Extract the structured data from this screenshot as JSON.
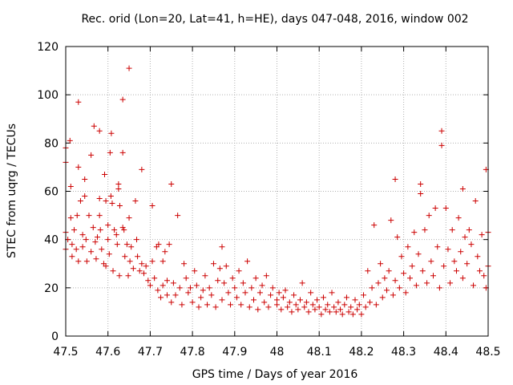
{
  "chart_data": {
    "type": "scatter",
    "title": "Rec. orid (Lon=20, Lat=41, h=HE), days 047-048, 2016, window 002",
    "xlabel": "GPS time / Days of year 2016",
    "ylabel": "STEC from uqrg / TECUs",
    "xlim": [
      47.5,
      48.5
    ],
    "ylim": [
      0,
      120
    ],
    "x_ticks": [
      47.5,
      47.6,
      47.7,
      47.8,
      47.9,
      48.0,
      48.1,
      48.2,
      48.3,
      48.4,
      48.5
    ],
    "x_tick_labels": [
      "47.5",
      "47.6",
      "47.7",
      "47.8",
      "47.9",
      "48",
      "48.1",
      "48.2",
      "48.3",
      "48.4",
      "48.5"
    ],
    "y_ticks": [
      0,
      20,
      40,
      60,
      80,
      100,
      120
    ],
    "y_tick_labels": [
      "0",
      "20",
      "40",
      "60",
      "80",
      "100",
      "120"
    ],
    "grid": true,
    "legend": "none",
    "marker": "plus",
    "color": "#cc0000",
    "series": [
      {
        "points": [
          [
            47.5,
            78
          ],
          [
            47.5,
            72
          ],
          [
            47.5,
            43
          ],
          [
            47.5,
            36
          ],
          [
            47.505,
            40
          ],
          [
            47.51,
            81
          ],
          [
            47.512,
            62
          ],
          [
            47.512,
            49
          ],
          [
            47.515,
            38
          ],
          [
            47.515,
            33
          ],
          [
            47.52,
            44
          ],
          [
            47.525,
            36
          ],
          [
            47.527,
            50
          ],
          [
            47.53,
            97
          ],
          [
            47.53,
            70
          ],
          [
            47.53,
            31
          ],
          [
            47.535,
            56
          ],
          [
            47.54,
            42
          ],
          [
            47.54,
            37
          ],
          [
            47.545,
            65
          ],
          [
            47.545,
            58
          ],
          [
            47.548,
            40
          ],
          [
            47.55,
            31
          ],
          [
            47.555,
            50
          ],
          [
            47.56,
            35
          ],
          [
            47.56,
            75
          ],
          [
            47.565,
            45
          ],
          [
            47.567,
            87
          ],
          [
            47.57,
            39
          ],
          [
            47.572,
            32
          ],
          [
            47.575,
            41
          ],
          [
            47.58,
            85
          ],
          [
            47.58,
            57
          ],
          [
            47.58,
            50
          ],
          [
            47.582,
            44
          ],
          [
            47.585,
            36
          ],
          [
            47.59,
            30
          ],
          [
            47.592,
            67
          ],
          [
            47.595,
            56
          ],
          [
            47.595,
            29
          ],
          [
            47.6,
            46
          ],
          [
            47.6,
            40
          ],
          [
            47.603,
            34
          ],
          [
            47.605,
            76
          ],
          [
            47.607,
            58
          ],
          [
            47.608,
            84
          ],
          [
            47.61,
            55
          ],
          [
            47.612,
            27
          ],
          [
            47.615,
            44
          ],
          [
            47.62,
            42
          ],
          [
            47.622,
            38
          ],
          [
            47.625,
            63
          ],
          [
            47.625,
            61
          ],
          [
            47.627,
            25
          ],
          [
            47.628,
            54
          ],
          [
            47.635,
            76
          ],
          [
            47.635,
            98
          ],
          [
            47.635,
            45
          ],
          [
            47.638,
            44
          ],
          [
            47.64,
            33
          ],
          [
            47.645,
            38
          ],
          [
            47.648,
            25
          ],
          [
            47.65,
            111
          ],
          [
            47.65,
            49
          ],
          [
            47.652,
            31
          ],
          [
            47.655,
            37
          ],
          [
            47.66,
            28
          ],
          [
            47.665,
            56
          ],
          [
            47.668,
            40
          ],
          [
            47.67,
            33
          ],
          [
            47.675,
            27
          ],
          [
            47.68,
            69
          ],
          [
            47.68,
            30
          ],
          [
            47.685,
            26
          ],
          [
            47.69,
            29
          ],
          [
            47.695,
            23
          ],
          [
            47.7,
            21
          ],
          [
            47.705,
            31
          ],
          [
            47.705,
            54
          ],
          [
            47.71,
            24
          ],
          [
            47.715,
            37
          ],
          [
            47.718,
            19
          ],
          [
            47.72,
            38
          ],
          [
            47.725,
            16
          ],
          [
            47.73,
            21
          ],
          [
            47.73,
            31
          ],
          [
            47.735,
            35
          ],
          [
            47.74,
            17
          ],
          [
            47.74,
            23
          ],
          [
            47.745,
            38
          ],
          [
            47.75,
            63
          ],
          [
            47.75,
            14
          ],
          [
            47.755,
            22
          ],
          [
            47.76,
            17
          ],
          [
            47.765,
            50
          ],
          [
            47.77,
            20
          ],
          [
            47.775,
            13
          ],
          [
            47.78,
            30
          ],
          [
            47.785,
            24
          ],
          [
            47.79,
            18
          ],
          [
            47.795,
            20
          ],
          [
            47.8,
            14
          ],
          [
            47.805,
            27
          ],
          [
            47.81,
            21
          ],
          [
            47.815,
            12
          ],
          [
            47.82,
            16
          ],
          [
            47.825,
            19
          ],
          [
            47.83,
            25
          ],
          [
            47.835,
            13
          ],
          [
            47.84,
            20
          ],
          [
            47.845,
            17
          ],
          [
            47.85,
            30
          ],
          [
            47.855,
            12
          ],
          [
            47.86,
            23
          ],
          [
            47.865,
            28
          ],
          [
            47.87,
            37
          ],
          [
            47.87,
            15
          ],
          [
            47.875,
            22
          ],
          [
            47.88,
            29
          ],
          [
            47.885,
            18
          ],
          [
            47.89,
            13
          ],
          [
            47.895,
            24
          ],
          [
            47.9,
            20
          ],
          [
            47.905,
            16
          ],
          [
            47.91,
            27
          ],
          [
            47.915,
            13
          ],
          [
            47.92,
            22
          ],
          [
            47.925,
            18
          ],
          [
            47.93,
            31
          ],
          [
            47.935,
            12
          ],
          [
            47.94,
            20
          ],
          [
            47.945,
            15
          ],
          [
            47.95,
            24
          ],
          [
            47.955,
            11
          ],
          [
            47.96,
            18
          ],
          [
            47.965,
            21
          ],
          [
            47.97,
            14
          ],
          [
            47.975,
            25
          ],
          [
            47.98,
            12
          ],
          [
            47.985,
            17
          ],
          [
            47.99,
            20
          ],
          [
            48.0,
            15
          ],
          [
            48.0,
            13
          ],
          [
            48.005,
            18
          ],
          [
            48.01,
            11
          ],
          [
            48.015,
            16
          ],
          [
            48.02,
            19
          ],
          [
            48.025,
            12
          ],
          [
            48.03,
            14
          ],
          [
            48.035,
            10
          ],
          [
            48.04,
            17
          ],
          [
            48.045,
            13
          ],
          [
            48.05,
            11
          ],
          [
            48.055,
            15
          ],
          [
            48.06,
            22
          ],
          [
            48.065,
            12
          ],
          [
            48.07,
            14
          ],
          [
            48.075,
            10
          ],
          [
            48.08,
            18
          ],
          [
            48.085,
            13
          ],
          [
            48.09,
            11
          ],
          [
            48.095,
            15
          ],
          [
            48.1,
            12
          ],
          [
            48.105,
            9
          ],
          [
            48.11,
            16
          ],
          [
            48.115,
            11
          ],
          [
            48.12,
            13
          ],
          [
            48.125,
            10
          ],
          [
            48.13,
            18
          ],
          [
            48.135,
            12
          ],
          [
            48.14,
            10
          ],
          [
            48.145,
            14
          ],
          [
            48.15,
            11
          ],
          [
            48.155,
            9
          ],
          [
            48.16,
            13
          ],
          [
            48.165,
            16
          ],
          [
            48.17,
            10
          ],
          [
            48.175,
            12
          ],
          [
            48.18,
            9
          ],
          [
            48.185,
            15
          ],
          [
            48.19,
            11
          ],
          [
            48.195,
            13
          ],
          [
            48.2,
            9
          ],
          [
            48.205,
            17
          ],
          [
            48.21,
            12
          ],
          [
            48.215,
            27
          ],
          [
            48.22,
            14
          ],
          [
            48.225,
            20
          ],
          [
            48.23,
            46
          ],
          [
            48.235,
            13
          ],
          [
            48.24,
            22
          ],
          [
            48.245,
            30
          ],
          [
            48.25,
            16
          ],
          [
            48.255,
            24
          ],
          [
            48.26,
            19
          ],
          [
            48.265,
            27
          ],
          [
            48.27,
            48
          ],
          [
            48.275,
            17
          ],
          [
            48.28,
            23
          ],
          [
            48.28,
            65
          ],
          [
            48.285,
            41
          ],
          [
            48.29,
            20
          ],
          [
            48.295,
            33
          ],
          [
            48.3,
            26
          ],
          [
            48.305,
            18
          ],
          [
            48.31,
            37
          ],
          [
            48.315,
            24
          ],
          [
            48.32,
            29
          ],
          [
            48.325,
            43
          ],
          [
            48.33,
            21
          ],
          [
            48.335,
            34
          ],
          [
            48.34,
            63
          ],
          [
            48.34,
            59
          ],
          [
            48.345,
            27
          ],
          [
            48.35,
            44
          ],
          [
            48.355,
            22
          ],
          [
            48.36,
            50
          ],
          [
            48.365,
            31
          ],
          [
            48.37,
            25
          ],
          [
            48.375,
            53
          ],
          [
            48.38,
            37
          ],
          [
            48.385,
            20
          ],
          [
            48.39,
            85
          ],
          [
            48.39,
            79
          ],
          [
            48.395,
            29
          ],
          [
            48.4,
            53
          ],
          [
            48.405,
            36
          ],
          [
            48.41,
            22
          ],
          [
            48.415,
            44
          ],
          [
            48.42,
            31
          ],
          [
            48.425,
            27
          ],
          [
            48.43,
            49
          ],
          [
            48.435,
            35
          ],
          [
            48.44,
            61
          ],
          [
            48.44,
            24
          ],
          [
            48.445,
            41
          ],
          [
            48.45,
            30
          ],
          [
            48.455,
            44
          ],
          [
            48.46,
            38
          ],
          [
            48.465,
            21
          ],
          [
            48.47,
            56
          ],
          [
            48.475,
            33
          ],
          [
            48.48,
            27
          ],
          [
            48.485,
            42
          ],
          [
            48.49,
            25
          ],
          [
            48.495,
            69
          ],
          [
            48.495,
            20
          ],
          [
            48.5,
            43
          ],
          [
            48.5,
            29
          ]
        ]
      }
    ]
  }
}
